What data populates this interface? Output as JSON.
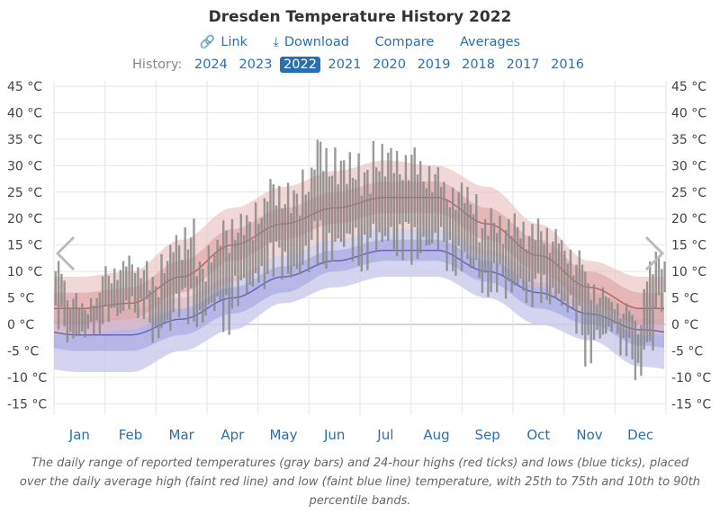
{
  "title": "Dresden Temperature History 2022",
  "actions": [
    {
      "label": "Link",
      "icon": "link-icon"
    },
    {
      "label": "Download",
      "icon": "download-icon"
    },
    {
      "label": "Compare"
    },
    {
      "label": "Averages"
    }
  ],
  "history": {
    "label": "History:",
    "years": [
      "2024",
      "2023",
      "2022",
      "2021",
      "2020",
      "2019",
      "2018",
      "2017",
      "2016"
    ],
    "active": "2022"
  },
  "caption": "The daily range of reported temperatures (gray bars) and 24-hour highs (red ticks) and lows (blue ticks), placed over the daily average high (faint red line) and low (faint blue line) temperature, with 25th to 75th and 10th to 90th percentile bands.",
  "colors": {
    "accent": "#2a6fb0",
    "high_band_outer": "#e9bcbc",
    "high_band_inner": "#d99898",
    "low_band_outer": "#c9c9ee",
    "low_band_inner": "#9f9fdf",
    "avg_high_line": "#b05050",
    "avg_low_line": "#5050b0",
    "daily_bar": "#888888"
  },
  "nav": {
    "prev_icon": "chevron-left-icon",
    "next_icon": "chevron-right-icon"
  },
  "chart_data": {
    "type": "area",
    "ylim": [
      -17,
      46
    ],
    "yticks": [
      45,
      40,
      35,
      30,
      25,
      20,
      15,
      10,
      5,
      0,
      -5,
      -10,
      -15
    ],
    "ytick_labels": [
      "45 °C",
      "40 °C",
      "35 °C",
      "30 °C",
      "25 °C",
      "20 °C",
      "15 °C",
      "10 °C",
      "5 °C",
      "0 °C",
      "-5 °C",
      "-10 °C",
      "-15 °C"
    ],
    "months": [
      "Jan",
      "Feb",
      "Mar",
      "Apr",
      "May",
      "Jun",
      "Jul",
      "Aug",
      "Sep",
      "Oct",
      "Nov",
      "Dec"
    ],
    "grid": true,
    "average_high": [
      3,
      4,
      9,
      15,
      19,
      22,
      24,
      24,
      19,
      13,
      7,
      3
    ],
    "average_low": [
      -2,
      -2,
      1,
      5,
      9,
      12,
      14,
      14,
      10,
      6,
      2,
      -1
    ],
    "high_p10_p90": [
      [
        -2,
        9
      ],
      [
        -1,
        10
      ],
      [
        3,
        16
      ],
      [
        8,
        22
      ],
      [
        13,
        26
      ],
      [
        16,
        29
      ],
      [
        18,
        31
      ],
      [
        18,
        30
      ],
      [
        13,
        26
      ],
      [
        7,
        19
      ],
      [
        2,
        12
      ],
      [
        -2,
        9
      ]
    ],
    "high_p25_p75": [
      [
        0,
        6
      ],
      [
        1,
        7
      ],
      [
        6,
        12
      ],
      [
        12,
        18
      ],
      [
        16,
        22
      ],
      [
        19,
        25
      ],
      [
        21,
        27
      ],
      [
        21,
        27
      ],
      [
        16,
        22
      ],
      [
        10,
        16
      ],
      [
        4,
        10
      ],
      [
        0,
        6
      ]
    ],
    "low_p10_p90": [
      [
        -9,
        3
      ],
      [
        -9,
        3
      ],
      [
        -5,
        5
      ],
      [
        -1,
        9
      ],
      [
        4,
        13
      ],
      [
        7,
        16
      ],
      [
        9,
        18
      ],
      [
        9,
        18
      ],
      [
        5,
        14
      ],
      [
        0,
        10
      ],
      [
        -3,
        6
      ],
      [
        -8,
        3
      ]
    ],
    "low_p25_p75": [
      [
        -5,
        1
      ],
      [
        -5,
        1
      ],
      [
        -2,
        3
      ],
      [
        2,
        7
      ],
      [
        6,
        11
      ],
      [
        10,
        14
      ],
      [
        12,
        16
      ],
      [
        12,
        16
      ],
      [
        8,
        12
      ],
      [
        3,
        8
      ],
      [
        0,
        4
      ],
      [
        -4,
        1
      ]
    ],
    "daily_range_weekly": [
      {
        "week": 1,
        "low": -1,
        "high": 12
      },
      {
        "week": 2,
        "low": -4,
        "high": 6
      },
      {
        "week": 3,
        "low": -3,
        "high": 4
      },
      {
        "week": 4,
        "low": -2,
        "high": 6
      },
      {
        "week": 5,
        "low": 0,
        "high": 11
      },
      {
        "week": 6,
        "low": 0,
        "high": 12
      },
      {
        "week": 7,
        "low": 2,
        "high": 13
      },
      {
        "week": 8,
        "low": 1,
        "high": 12
      },
      {
        "week": 9,
        "low": -4,
        "high": 9
      },
      {
        "week": 10,
        "low": -3,
        "high": 15
      },
      {
        "week": 11,
        "low": 1,
        "high": 17
      },
      {
        "week": 12,
        "low": 0,
        "high": 20
      },
      {
        "week": 13,
        "low": -1,
        "high": 12
      },
      {
        "week": 14,
        "low": 1,
        "high": 16
      },
      {
        "week": 15,
        "low": -2,
        "high": 20
      },
      {
        "week": 16,
        "low": 3,
        "high": 21
      },
      {
        "week": 17,
        "low": 4,
        "high": 21
      },
      {
        "week": 18,
        "low": 6,
        "high": 24
      },
      {
        "week": 19,
        "low": 9,
        "high": 28
      },
      {
        "week": 20,
        "low": 8,
        "high": 27
      },
      {
        "week": 21,
        "low": 7,
        "high": 26
      },
      {
        "week": 22,
        "low": 9,
        "high": 30
      },
      {
        "week": 23,
        "low": 11,
        "high": 36
      },
      {
        "week": 24,
        "low": 10,
        "high": 34
      },
      {
        "week": 25,
        "low": 12,
        "high": 32
      },
      {
        "week": 26,
        "low": 11,
        "high": 33
      },
      {
        "week": 27,
        "low": 10,
        "high": 30
      },
      {
        "week": 28,
        "low": 12,
        "high": 35
      },
      {
        "week": 29,
        "low": 13,
        "high": 34
      },
      {
        "week": 30,
        "low": 12,
        "high": 33
      },
      {
        "week": 31,
        "low": 11,
        "high": 34
      },
      {
        "week": 32,
        "low": 12,
        "high": 31
      },
      {
        "week": 33,
        "low": 13,
        "high": 30
      },
      {
        "week": 34,
        "low": 10,
        "high": 27
      },
      {
        "week": 35,
        "low": 9,
        "high": 27
      },
      {
        "week": 36,
        "low": 8,
        "high": 26
      },
      {
        "week": 37,
        "low": 5,
        "high": 20
      },
      {
        "week": 38,
        "low": 6,
        "high": 22
      },
      {
        "week": 39,
        "low": 4,
        "high": 20
      },
      {
        "week": 40,
        "low": 5,
        "high": 21
      },
      {
        "week": 41,
        "low": 3,
        "high": 19
      },
      {
        "week": 42,
        "low": 4,
        "high": 20
      },
      {
        "week": 43,
        "low": 3,
        "high": 18
      },
      {
        "week": 44,
        "low": 1,
        "high": 16
      },
      {
        "week": 45,
        "low": -2,
        "high": 14
      },
      {
        "week": 46,
        "low": -8,
        "high": 10
      },
      {
        "week": 47,
        "low": -4,
        "high": 7
      },
      {
        "week": 48,
        "low": -2,
        "high": 5
      },
      {
        "week": 49,
        "low": -6,
        "high": 4
      },
      {
        "week": 50,
        "low": -11,
        "high": 2
      },
      {
        "week": 51,
        "low": -7,
        "high": 12
      },
      {
        "week": 52,
        "low": 2,
        "high": 14
      }
    ]
  }
}
